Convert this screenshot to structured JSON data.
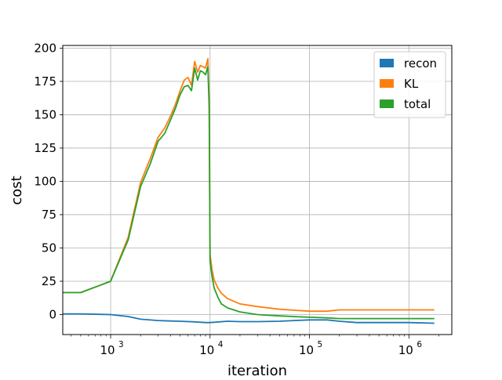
{
  "chart_data": {
    "type": "line",
    "xlabel": "iteration",
    "ylabel": "cost",
    "xscale": "log",
    "xlim": [
      330,
      2700000
    ],
    "ylim": [
      -15,
      202
    ],
    "grid": true,
    "legend_position": "top-right",
    "x_ticks": [
      1000,
      10000,
      100000,
      1000000
    ],
    "x_tick_labels": [
      {
        "base": "10",
        "exp": "3"
      },
      {
        "base": "10",
        "exp": "4"
      },
      {
        "base": "10",
        "exp": "5"
      },
      {
        "base": "10",
        "exp": "6"
      }
    ],
    "y_ticks": [
      0,
      25,
      50,
      75,
      100,
      125,
      150,
      175,
      200
    ],
    "y_tick_labels": [
      "0",
      "25",
      "50",
      "75",
      "100",
      "125",
      "150",
      "175",
      "200"
    ],
    "series": [
      {
        "name": "recon",
        "color": "#1f77b4",
        "x": [
          330,
          500,
          1000,
          1500,
          2000,
          3000,
          4000,
          5000,
          7000,
          9000,
          10000,
          15000,
          20000,
          30000,
          50000,
          70000,
          100000,
          150000,
          200000,
          300000,
          500000,
          1000000,
          1800000
        ],
        "y": [
          0.5,
          0.5,
          0,
          -1.5,
          -3.5,
          -4.5,
          -4.8,
          -5,
          -5.5,
          -6,
          -6,
          -5,
          -5.3,
          -5.3,
          -5,
          -4.5,
          -4,
          -4,
          -5,
          -6,
          -6,
          -6,
          -6.5
        ]
      },
      {
        "name": "KL",
        "color": "#ff7f0e",
        "x": [
          330,
          500,
          1000,
          1500,
          2000,
          2500,
          3000,
          3500,
          4000,
          4500,
          5000,
          5500,
          6000,
          6500,
          7000,
          7500,
          8000,
          8500,
          9000,
          9500,
          9800,
          10000,
          10500,
          11000,
          12000,
          13000,
          15000,
          20000,
          30000,
          50000,
          100000,
          150000,
          200000,
          500000,
          1000000,
          1800000
        ],
        "y": [
          16.5,
          16.5,
          25,
          58,
          99,
          117,
          133,
          140,
          149,
          158,
          168,
          176,
          178,
          172,
          190,
          182,
          187,
          186,
          185,
          192,
          160,
          45,
          33,
          26,
          20,
          16,
          12,
          8,
          6,
          4,
          2.5,
          2.5,
          3.5,
          3.5,
          3.5,
          3.5
        ]
      },
      {
        "name": "total",
        "color": "#2ca02c",
        "x": [
          330,
          500,
          1000,
          1500,
          2000,
          2500,
          3000,
          3500,
          4000,
          4500,
          5000,
          5500,
          6000,
          6500,
          7000,
          7500,
          8000,
          8500,
          9000,
          9500,
          9800,
          10000,
          10500,
          11000,
          12000,
          13000,
          15000,
          20000,
          30000,
          50000,
          100000,
          150000,
          200000,
          500000,
          1000000,
          1800000
        ],
        "y": [
          16.5,
          16.5,
          25,
          56,
          96,
          113,
          130,
          136,
          146,
          155,
          165,
          171,
          172,
          168,
          185,
          176,
          183,
          182,
          180,
          186,
          155,
          40,
          28,
          20,
          13,
          8,
          5,
          2,
          0,
          -1,
          -2,
          -2.5,
          -3,
          -3,
          -3,
          -3
        ]
      }
    ]
  }
}
